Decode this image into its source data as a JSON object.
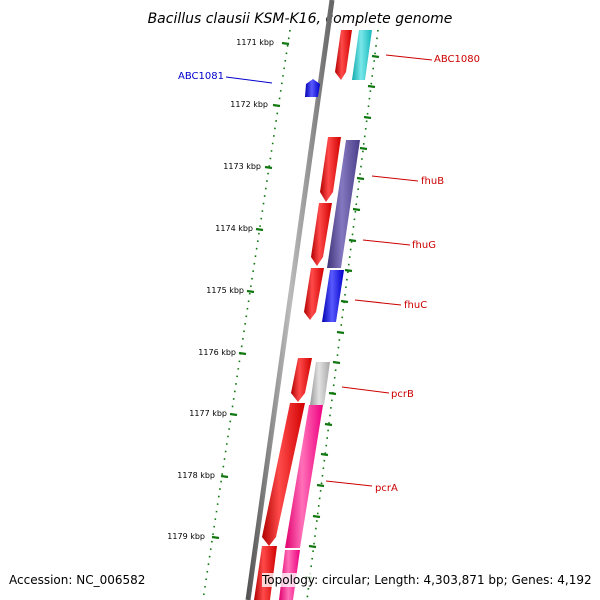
{
  "title": "Bacillus clausii KSM-K16, complete genome",
  "kbp_labels": [
    "1171 kbp",
    "1172 kbp",
    "1173 kbp",
    "1174 kbp",
    "1175 kbp",
    "1176 kbp",
    "1177 kbp",
    "1178 kbp",
    "1179 kbp"
  ],
  "genes": [
    {
      "name": "ABC1080",
      "color": "#cc0000"
    },
    {
      "name": "ABC1081",
      "color": "#0000cc"
    },
    {
      "name": "fhuB",
      "color": "#cc0000"
    },
    {
      "name": "fhuG",
      "color": "#cc0000"
    },
    {
      "name": "fhuC",
      "color": "#cc0000"
    },
    {
      "name": "pcrB",
      "color": "#cc0000"
    },
    {
      "name": "pcrA",
      "color": "#cc0000"
    }
  ],
  "footer": {
    "accession": "Accession: NC_006582",
    "summary": "Topology: circular; Length: 4,303,871 bp; Genes: 4,192"
  },
  "colors": {
    "cds_forward": "#ee0000",
    "cds_reverse": "#0000ee",
    "cog_teal": "#20c8cc",
    "cog_purple": "#5a4a98",
    "cog_blue": "#2020e0",
    "cog_gray": "#b8b8b8",
    "cog_pink": "#ff1a8c",
    "tick_green": "#117711",
    "backbone": "#777777"
  }
}
